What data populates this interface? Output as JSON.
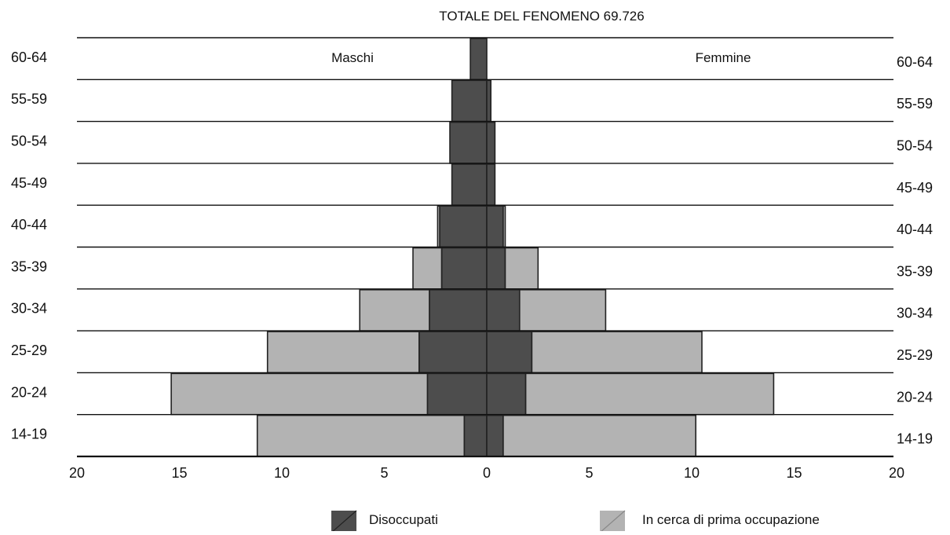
{
  "chart_data": {
    "type": "bar",
    "subtype": "population-pyramid",
    "title": "TOTALE DEL FENOMENO 69.726",
    "side_labels": {
      "left": "Maschi",
      "right": "Femmine"
    },
    "categories": [
      "60-64",
      "55-59",
      "50-54",
      "45-49",
      "40-44",
      "35-39",
      "30-34",
      "25-29",
      "20-24",
      "14-19"
    ],
    "series": [
      {
        "name": "Disoccupati",
        "side": "left",
        "color": "#4d4d4d",
        "values": [
          0.8,
          1.7,
          1.8,
          1.7,
          2.3,
          2.2,
          2.8,
          3.3,
          2.9,
          1.1
        ]
      },
      {
        "name": "In cerca di prima occupazione",
        "side": "left",
        "color": "#b3b3b3",
        "values": [
          0.0,
          0.0,
          0.0,
          0.0,
          0.1,
          1.4,
          3.4,
          7.4,
          12.5,
          10.1
        ]
      },
      {
        "name": "Disoccupati",
        "side": "right",
        "color": "#4d4d4d",
        "values": [
          0.0,
          0.2,
          0.4,
          0.4,
          0.8,
          0.9,
          1.6,
          2.2,
          1.9,
          0.8
        ]
      },
      {
        "name": "In cerca di prima occupazione",
        "side": "right",
        "color": "#b3b3b3",
        "values": [
          0.0,
          0.0,
          0.0,
          0.0,
          0.1,
          1.6,
          4.2,
          8.3,
          12.1,
          9.4
        ]
      }
    ],
    "xticks": [
      {
        "label": "20",
        "value": -20
      },
      {
        "label": "15",
        "value": -15
      },
      {
        "label": "10",
        "value": -10
      },
      {
        "label": "5",
        "value": -5
      },
      {
        "label": "0",
        "value": 0
      },
      {
        "label": "5",
        "value": 5
      },
      {
        "label": "10",
        "value": 10
      },
      {
        "label": "15",
        "value": 15
      },
      {
        "label": "20",
        "value": 20
      }
    ],
    "xlim": [
      -20,
      20
    ],
    "legend": {
      "position": "bottom",
      "items": [
        {
          "label": "Disoccupati",
          "color": "#4d4d4d"
        },
        {
          "label": "In cerca di prima occupazione",
          "color": "#b3b3b3"
        }
      ]
    },
    "grid": "horizontal row separators"
  }
}
